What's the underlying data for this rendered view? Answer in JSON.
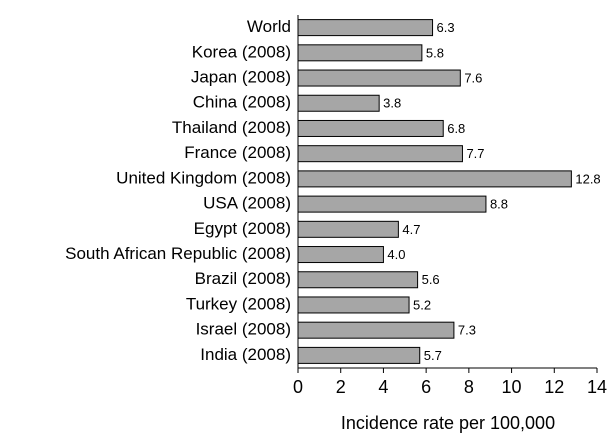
{
  "chart_data": {
    "type": "barh",
    "x_label": "Incidence rate per 100,000",
    "categories": [
      "World",
      "Korea (2008)",
      "Japan (2008)",
      "China (2008)",
      "Thailand (2008)",
      "France (2008)",
      "United Kingdom (2008)",
      "USA (2008)",
      "Egypt (2008)",
      "South African Republic (2008)",
      "Brazil (2008)",
      "Turkey (2008)",
      "Israel (2008)",
      "India (2008)"
    ],
    "values": [
      6.3,
      5.8,
      7.6,
      3.8,
      6.8,
      7.7,
      12.8,
      8.8,
      4.7,
      4.0,
      5.6,
      5.2,
      7.3,
      5.7
    ],
    "value_labels": [
      "6.3",
      "5.8",
      "7.6",
      "3.8",
      "6.8",
      "7.7",
      "12.8",
      "8.8",
      "4.7",
      "4.0",
      "5.6",
      "5.2",
      "7.3",
      "5.7"
    ],
    "color": "#a6a6a6",
    "xlim": [
      0,
      14
    ],
    "xticks": [
      0,
      2,
      4,
      6,
      8,
      10,
      12,
      14
    ]
  }
}
